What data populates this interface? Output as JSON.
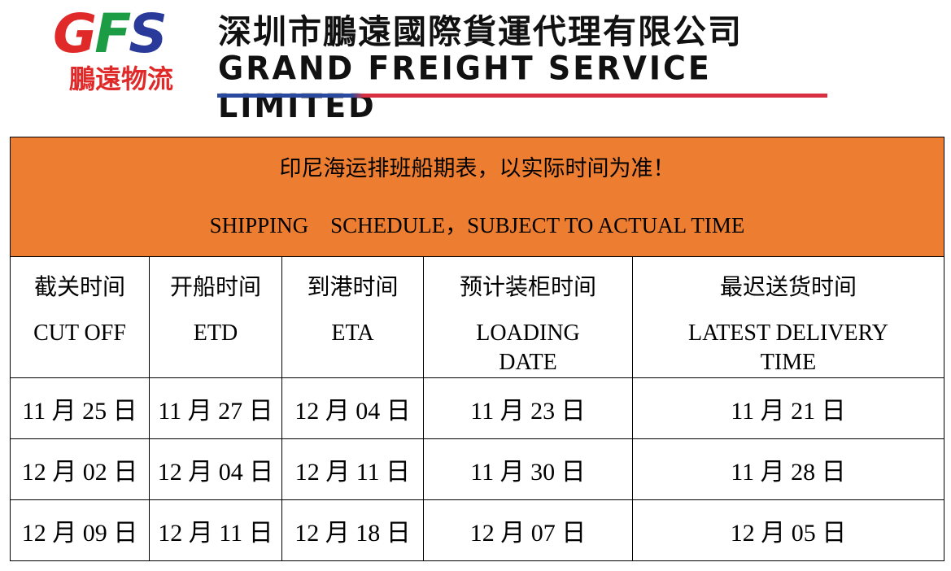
{
  "logo": {
    "mark_letters": [
      "G",
      "F",
      "S"
    ],
    "mark_subtitle": "鵬遠物流",
    "company_cn": "深圳市鵬遠國際貨運代理有限公司",
    "company_en": "GRAND FREIGHT SERVICE LIMITED",
    "colors": {
      "red": "#e02a2a",
      "green": "#1b9c45",
      "blue": "#2a3a9a"
    }
  },
  "schedule": {
    "title_cn": "印尼海运排班船期表，以实际时间为准！",
    "title_en": "SHIPPING　SCHEDULE，SUBJECT TO ACTUAL TIME",
    "header_color": "#ed7d31",
    "columns": [
      {
        "cn": "截关时间",
        "en": "CUT OFF"
      },
      {
        "cn": "开船时间",
        "en": "ETD"
      },
      {
        "cn": "到港时间",
        "en": "ETA"
      },
      {
        "cn": "预计装柜时间",
        "en": "LOADING DATE"
      },
      {
        "cn": "最迟送货时间",
        "en": "LATEST DELIVERY TIME"
      }
    ],
    "rows": [
      [
        "11 月 25 日",
        "11 月 27 日",
        "12 月 04 日",
        "11 月 23 日",
        "11 月 21 日"
      ],
      [
        "12 月 02 日",
        "12 月 04 日",
        "12 月 11 日",
        "11 月 30 日",
        "11 月 28 日"
      ],
      [
        "12 月 09 日",
        "12 月 11 日",
        "12 月 18 日",
        "12 月 07 日",
        "12 月 05 日"
      ]
    ]
  }
}
